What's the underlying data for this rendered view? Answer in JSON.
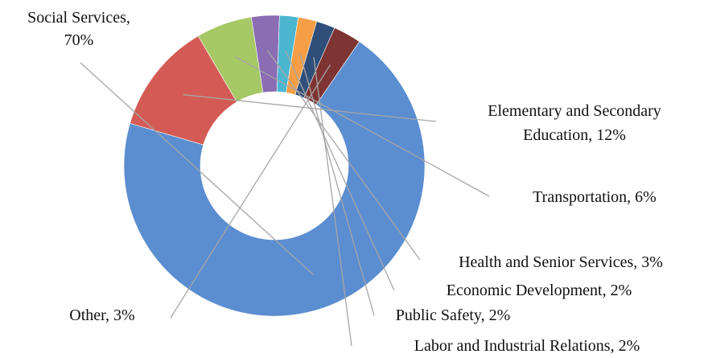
{
  "chart_data": {
    "type": "pie",
    "variant": "donut",
    "legend": "none",
    "slices": [
      {
        "label": "Social Services",
        "value": 70,
        "value_label": "70%",
        "color": "#5b8ed0"
      },
      {
        "label": "Elementary and Secondary Education",
        "value": 12,
        "value_label": "12%",
        "color": "#d45b55"
      },
      {
        "label": "Transportation",
        "value": 6,
        "value_label": "6%",
        "color": "#a6c865"
      },
      {
        "label": "Health and Senior Services",
        "value": 3,
        "value_label": "3%",
        "color": "#8a6db3"
      },
      {
        "label": "Economic Development",
        "value": 2,
        "value_label": "2%",
        "color": "#4cb6d0"
      },
      {
        "label": "Public Safety",
        "value": 2,
        "value_label": "2%",
        "color": "#f59e45"
      },
      {
        "label": "Labor and Industrial Relations",
        "value": 2,
        "value_label": "2%",
        "color": "#2f4f7a"
      },
      {
        "label": "Other",
        "value": 3,
        "value_label": "3%",
        "color": "#7e3432"
      }
    ]
  }
}
